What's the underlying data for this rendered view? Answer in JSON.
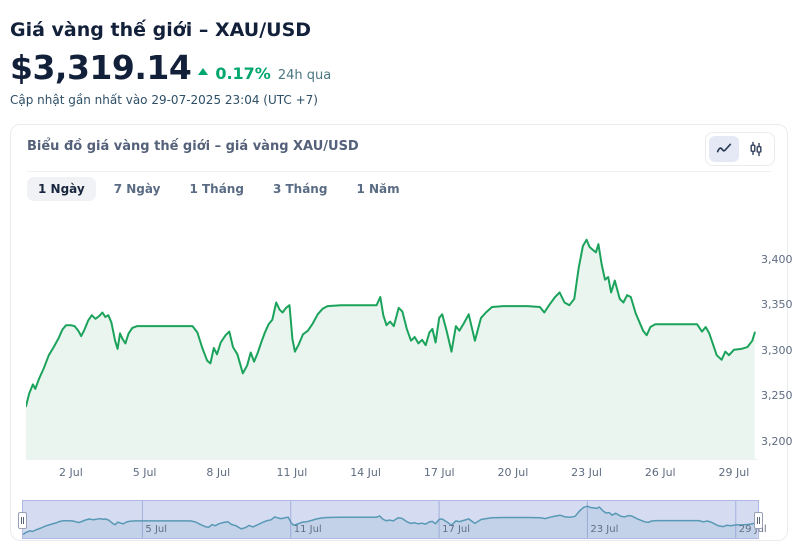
{
  "header": {
    "title": "Giá vàng thế giới – XAU/USD",
    "price": "$3,319.14",
    "change_percent": "0.17%",
    "change_period": "24h qua",
    "last_updated": "Cập nhật gần nhất vào 29-07-2025 23:04 (UTC +7)"
  },
  "card": {
    "header": "Biểu đồ giá vàng thế giới – giá vàng XAU/USD",
    "range_tabs": [
      {
        "label": "1 Ngày",
        "active": true
      },
      {
        "label": "7 Ngày",
        "active": false
      },
      {
        "label": "1 Tháng",
        "active": false
      },
      {
        "label": "3 Tháng",
        "active": false
      },
      {
        "label": "1 Năm",
        "active": false
      }
    ],
    "chart_type_toggle": [
      {
        "name": "line-chart",
        "active": true
      },
      {
        "name": "candlestick-chart",
        "active": false
      }
    ]
  },
  "colors": {
    "text_dark": "#13203a",
    "text_slate": "#55617a",
    "text_teal": "#4b7682",
    "text_steel": "#2e4f66",
    "accent_green": "#00a76d",
    "line_green": "#1ba35c",
    "area_fill": "#ebf5ef",
    "axis_label": "#5f6c82",
    "navigator_line": "#54a3ad",
    "navigator_mask": "rgba(101,125,205,0.27)",
    "navigator_grid": "rgba(116,132,200,0.5)",
    "navigator_border": "#aeb8e6"
  },
  "chart_data": {
    "type": "area",
    "title": "Biểu đồ giá vàng thế giới – giá vàng XAU/USD",
    "series_name": "XAU/USD",
    "x_unit": "day of July 2025",
    "xlim": [
      0.17,
      29.9
    ],
    "ylim": [
      3180,
      3447
    ],
    "grid": "off",
    "legend": "none",
    "y_ticks": [
      {
        "value": 3400,
        "label": "3,400"
      },
      {
        "value": 3350,
        "label": "3,350"
      },
      {
        "value": 3300,
        "label": "3,300"
      },
      {
        "value": 3250,
        "label": "3,250"
      },
      {
        "value": 3200,
        "label": "3,200"
      }
    ],
    "x_ticks": [
      {
        "day": 2,
        "label": "2 Jul"
      },
      {
        "day": 5,
        "label": "5 Jul"
      },
      {
        "day": 8,
        "label": "8 Jul"
      },
      {
        "day": 11,
        "label": "11 Jul"
      },
      {
        "day": 14,
        "label": "14 Jul"
      },
      {
        "day": 17,
        "label": "17 Jul"
      },
      {
        "day": 20,
        "label": "20 Jul"
      },
      {
        "day": 23,
        "label": "23 Jul"
      },
      {
        "day": 26,
        "label": "26 Jul"
      },
      {
        "day": 29,
        "label": "29 Jul"
      }
    ],
    "navigator_ticks": [
      {
        "day": 5,
        "label": "5 Jul"
      },
      {
        "day": 11,
        "label": "11 Jul"
      },
      {
        "day": 17,
        "label": "17 Jul"
      },
      {
        "day": 23,
        "label": "23 Jul"
      },
      {
        "day": 29,
        "label": "29 Jul"
      }
    ],
    "points": [
      [
        0.17,
        3238
      ],
      [
        0.3,
        3252
      ],
      [
        0.45,
        3262
      ],
      [
        0.55,
        3257
      ],
      [
        0.7,
        3268
      ],
      [
        0.9,
        3280
      ],
      [
        1.1,
        3294
      ],
      [
        1.3,
        3303
      ],
      [
        1.5,
        3313
      ],
      [
        1.65,
        3322
      ],
      [
        1.8,
        3327
      ],
      [
        2.0,
        3327
      ],
      [
        2.15,
        3326
      ],
      [
        2.3,
        3321
      ],
      [
        2.42,
        3315
      ],
      [
        2.55,
        3322
      ],
      [
        2.7,
        3332
      ],
      [
        2.85,
        3338
      ],
      [
        3.0,
        3334
      ],
      [
        3.15,
        3337
      ],
      [
        3.28,
        3341
      ],
      [
        3.4,
        3336
      ],
      [
        3.52,
        3338
      ],
      [
        3.65,
        3330
      ],
      [
        3.8,
        3310
      ],
      [
        3.9,
        3301
      ],
      [
        4.0,
        3318
      ],
      [
        4.1,
        3312
      ],
      [
        4.22,
        3307
      ],
      [
        4.35,
        3318
      ],
      [
        4.5,
        3324
      ],
      [
        4.7,
        3326
      ],
      [
        5.2,
        3326
      ],
      [
        5.8,
        3326
      ],
      [
        6.4,
        3326
      ],
      [
        6.95,
        3326
      ],
      [
        7.15,
        3319
      ],
      [
        7.35,
        3302
      ],
      [
        7.55,
        3288
      ],
      [
        7.68,
        3285
      ],
      [
        7.82,
        3302
      ],
      [
        7.95,
        3295
      ],
      [
        8.1,
        3308
      ],
      [
        8.3,
        3316
      ],
      [
        8.45,
        3320
      ],
      [
        8.6,
        3303
      ],
      [
        8.78,
        3295
      ],
      [
        9.0,
        3274
      ],
      [
        9.18,
        3283
      ],
      [
        9.32,
        3297
      ],
      [
        9.46,
        3287
      ],
      [
        9.6,
        3296
      ],
      [
        9.75,
        3308
      ],
      [
        9.9,
        3319
      ],
      [
        10.05,
        3328
      ],
      [
        10.2,
        3333
      ],
      [
        10.36,
        3352
      ],
      [
        10.5,
        3344
      ],
      [
        10.62,
        3341
      ],
      [
        10.76,
        3346
      ],
      [
        10.9,
        3349
      ],
      [
        11.02,
        3312
      ],
      [
        11.12,
        3298
      ],
      [
        11.28,
        3306
      ],
      [
        11.45,
        3317
      ],
      [
        11.65,
        3321
      ],
      [
        11.85,
        3329
      ],
      [
        12.05,
        3339
      ],
      [
        12.25,
        3345
      ],
      [
        12.45,
        3348
      ],
      [
        13.0,
        3349
      ],
      [
        13.6,
        3349
      ],
      [
        14.2,
        3349
      ],
      [
        14.45,
        3349
      ],
      [
        14.6,
        3358
      ],
      [
        14.72,
        3338
      ],
      [
        14.85,
        3327
      ],
      [
        15.0,
        3331
      ],
      [
        15.15,
        3326
      ],
      [
        15.35,
        3346
      ],
      [
        15.5,
        3342
      ],
      [
        15.68,
        3323
      ],
      [
        15.85,
        3310
      ],
      [
        16.0,
        3314
      ],
      [
        16.15,
        3307
      ],
      [
        16.3,
        3311
      ],
      [
        16.45,
        3305
      ],
      [
        16.6,
        3319
      ],
      [
        16.72,
        3323
      ],
      [
        16.85,
        3308
      ],
      [
        17.0,
        3335
      ],
      [
        17.12,
        3339
      ],
      [
        17.3,
        3321
      ],
      [
        17.5,
        3298
      ],
      [
        17.68,
        3326
      ],
      [
        17.82,
        3321
      ],
      [
        18.0,
        3329
      ],
      [
        18.2,
        3339
      ],
      [
        18.45,
        3310
      ],
      [
        18.7,
        3335
      ],
      [
        18.9,
        3341
      ],
      [
        19.15,
        3347
      ],
      [
        19.6,
        3348
      ],
      [
        20.1,
        3348
      ],
      [
        20.6,
        3348
      ],
      [
        21.1,
        3347
      ],
      [
        21.28,
        3341
      ],
      [
        21.5,
        3350
      ],
      [
        21.72,
        3358
      ],
      [
        21.9,
        3363
      ],
      [
        22.1,
        3352
      ],
      [
        22.3,
        3349
      ],
      [
        22.5,
        3356
      ],
      [
        22.68,
        3390
      ],
      [
        22.85,
        3414
      ],
      [
        23.0,
        3421
      ],
      [
        23.12,
        3413
      ],
      [
        23.25,
        3410
      ],
      [
        23.38,
        3407
      ],
      [
        23.48,
        3416
      ],
      [
        23.62,
        3393
      ],
      [
        23.75,
        3377
      ],
      [
        23.88,
        3380
      ],
      [
        24.0,
        3363
      ],
      [
        24.15,
        3376
      ],
      [
        24.35,
        3356
      ],
      [
        24.5,
        3352
      ],
      [
        24.65,
        3360
      ],
      [
        24.8,
        3358
      ],
      [
        25.0,
        3340
      ],
      [
        25.3,
        3321
      ],
      [
        25.45,
        3316
      ],
      [
        25.6,
        3325
      ],
      [
        25.8,
        3328
      ],
      [
        26.3,
        3328
      ],
      [
        26.9,
        3328
      ],
      [
        27.5,
        3328
      ],
      [
        27.7,
        3320
      ],
      [
        27.85,
        3325
      ],
      [
        28.0,
        3318
      ],
      [
        28.3,
        3294
      ],
      [
        28.5,
        3289
      ],
      [
        28.65,
        3298
      ],
      [
        28.8,
        3294
      ],
      [
        29.0,
        3300
      ],
      [
        29.3,
        3301
      ],
      [
        29.55,
        3303
      ],
      [
        29.75,
        3310
      ],
      [
        29.85,
        3319
      ]
    ]
  }
}
